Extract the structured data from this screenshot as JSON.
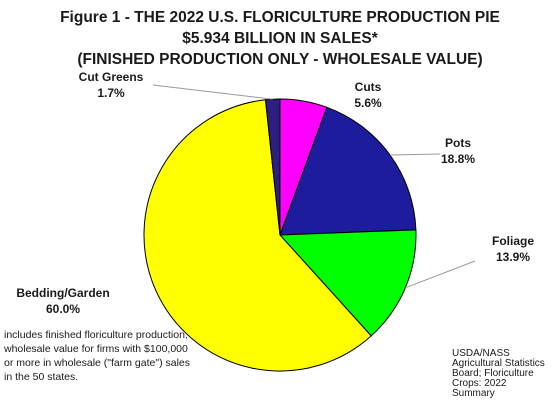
{
  "title_lines": [
    "Figure 1 - THE 2022 U.S. FLORICULTURE PRODUCTION PIE",
    "$5.934 BILLION IN SALES*",
    "(FINISHED PRODUCTION ONLY - WHOLESALE VALUE)"
  ],
  "chart_data": {
    "type": "pie",
    "title": "Figure 1 - THE 2022 U.S. FLORICULTURE PRODUCTION PIE $5.934 BILLION IN SALES* (FINISHED PRODUCTION ONLY - WHOLESALE VALUE)",
    "start_angle_deg": 0,
    "direction": "clockwise",
    "slices": [
      {
        "name": "Cuts",
        "value": 5.6,
        "value_label": "5.6%",
        "color": "#ff00ff"
      },
      {
        "name": "Pots",
        "value": 18.8,
        "value_label": "18.8%",
        "color": "#1c1c9c"
      },
      {
        "name": "Foliage",
        "value": 13.9,
        "value_label": "13.9%",
        "color": "#00ff00"
      },
      {
        "name": "Bedding/Garden",
        "value": 60.0,
        "value_label": "60.0%",
        "color": "#ffff00"
      },
      {
        "name": "Cut Greens",
        "value": 1.7,
        "value_label": "1.7%",
        "color": "#2b1f80"
      }
    ],
    "slice_border_color": "#000000"
  },
  "footnote": "includes finished floriculture production, wholesale value for firms with $100,000 or more in wholesale (\"farm gate\") sales in the 50 states.",
  "source": "USDA/NASS Agricultural Statistics Board; Floriculture Crops: 2022 Summary"
}
